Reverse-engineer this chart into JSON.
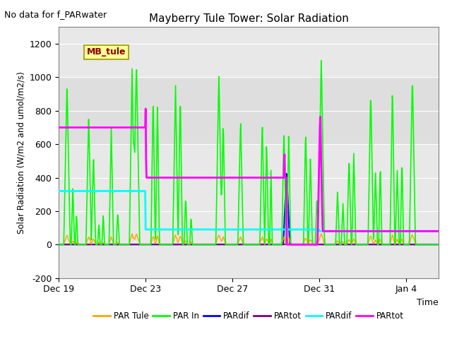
{
  "title": "Mayberry Tule Tower: Solar Radiation",
  "ylabel": "Solar Radiation (W/m2 and umol/m2/s)",
  "xlabel": "Time",
  "ylim": [
    -200,
    1300
  ],
  "yticks": [
    -200,
    0,
    200,
    400,
    600,
    800,
    1000,
    1200
  ],
  "top_annotation": "No data for f_PARwater",
  "label_box": "MB_tule",
  "xtick_labels": [
    "Dec 19",
    "Dec 23",
    "Dec 27",
    "Dec 31",
    "Jan 4"
  ],
  "xtick_positions": [
    0,
    4,
    8,
    12,
    16
  ],
  "legend_labels": [
    "PAR Tule",
    "PAR In",
    "PARdif",
    "PARtot",
    "PARdif",
    "PARtot"
  ],
  "legend_colors": [
    "#ffa500",
    "#00ff00",
    "#0000ff",
    "#800080",
    "#00ffff",
    "#ff00ff"
  ],
  "shaded_band": [
    600,
    1000
  ],
  "shaded_color": "#d0d0d0"
}
